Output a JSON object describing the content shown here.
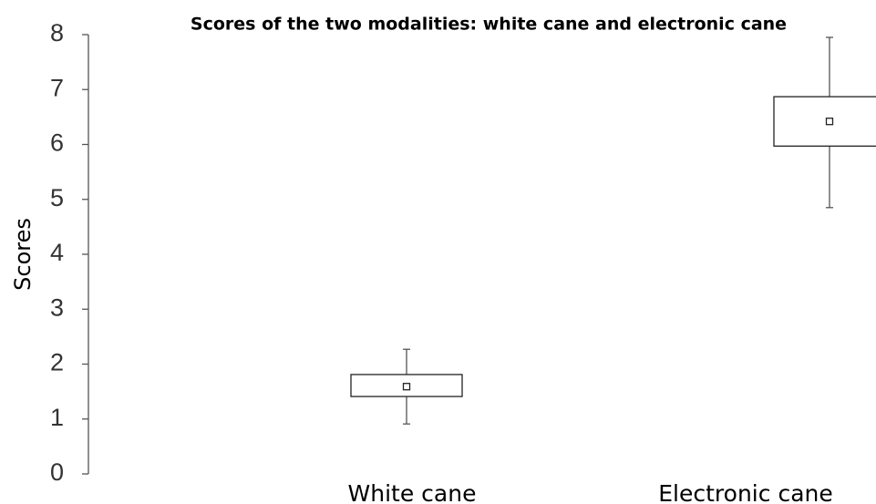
{
  "chart_data": {
    "type": "box",
    "title": "Scores of the two modalities: white cane and electronic cane",
    "y_label": "Scores",
    "categories": [
      "White cane",
      "Electronic cane"
    ],
    "series": [
      {
        "whisker_low": 0.91,
        "q1": 1.41,
        "q3": 1.81,
        "whisker_high": 2.27,
        "mean": 1.59
      },
      {
        "whisker_low": 4.85,
        "q1": 5.97,
        "q3": 6.87,
        "whisker_high": 7.95,
        "mean": 6.42
      }
    ],
    "ylim": [
      0,
      8
    ],
    "yticks": [
      0,
      1,
      2,
      3,
      4,
      5,
      6,
      7,
      8
    ],
    "grid": false
  }
}
